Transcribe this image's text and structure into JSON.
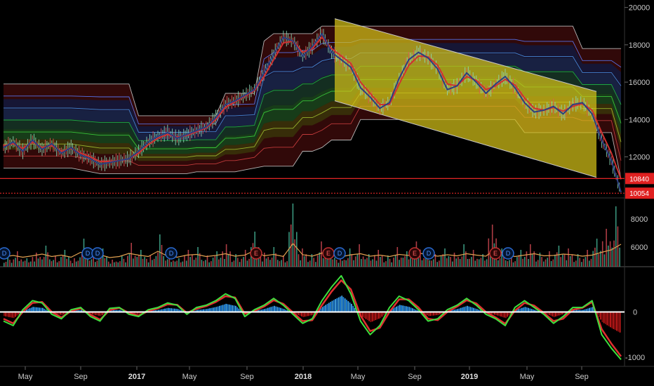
{
  "chart_data": [
    {
      "type": "line",
      "panel": "price",
      "title": "",
      "ylim": [
        9800,
        20400
      ],
      "y_ticks": [
        "20000",
        "18000",
        "16000",
        "14000",
        "12000"
      ],
      "y_tick_values": [
        20000,
        18000,
        16000,
        14000,
        12000
      ],
      "price_labels": [
        {
          "text": "10840",
          "value": 10840,
          "color": "#e02020"
        },
        {
          "text": "10054",
          "value": 10054,
          "color": "#e02020"
        }
      ],
      "x_ticks": [
        "May",
        "Sep",
        "2017",
        "May",
        "Sep",
        "2018",
        "May",
        "Sep",
        "2019",
        "May",
        "Sep"
      ],
      "series": [
        {
          "values": [
            12500,
            12800,
            12300,
            12900,
            12400,
            12700,
            12200,
            12500,
            12100,
            11900,
            11600,
            11700,
            11800,
            11900,
            12300,
            12800,
            13100,
            13300,
            13000,
            13200,
            13400,
            13600,
            14100,
            14800,
            15000,
            15300,
            15600,
            16500,
            17500,
            18400,
            18200,
            17400,
            17900,
            18600,
            17600,
            17200,
            16800,
            15700,
            15200,
            14600,
            14900,
            16200,
            17200,
            17600,
            17300,
            16700,
            15600,
            15800,
            16500,
            16000,
            15400,
            15900,
            16300,
            15700,
            14900,
            14400,
            14500,
            14700,
            14300,
            14800,
            14900,
            14300,
            12900,
            11800,
            10100
          ]
        },
        {
          "values": [
            12600,
            12700,
            12450,
            12800,
            12500,
            12600,
            12300,
            12450,
            12200,
            12000,
            11750,
            11750,
            11800,
            11900,
            12200,
            12650,
            13000,
            13200,
            13050,
            13150,
            13350,
            13550,
            14000,
            14650,
            14950,
            15250,
            15550,
            16300,
            17200,
            18100,
            18200,
            17600,
            17800,
            18400,
            17800,
            17400,
            17000,
            16000,
            15400,
            14800,
            14800,
            15900,
            16900,
            17400,
            17350,
            16900,
            15900,
            15800,
            16300,
            16100,
            15600,
            15800,
            16150,
            15850,
            15150,
            14600,
            14500,
            14650,
            14450,
            14700,
            14850,
            14500,
            13300,
            12200,
            10800
          ]
        }
      ],
      "levels": [
        {
          "values": [
            15900,
            15900,
            15900,
            15900,
            15900,
            15900,
            15900,
            15900,
            15900,
            15900,
            15900,
            15900,
            15900,
            15900,
            14200,
            14200,
            14200,
            14200,
            14200,
            14200,
            14200,
            14200,
            14200,
            15400,
            15400,
            15400,
            15400,
            18200,
            18600,
            18600,
            18600,
            18600,
            18600,
            19000,
            19000,
            19000,
            19000,
            19000,
            19000,
            19000,
            19000,
            19000,
            19000,
            19000,
            19000,
            19000,
            19000,
            19000,
            19000,
            19000,
            19000,
            19000,
            19000,
            19000,
            19000,
            19000,
            19000,
            19000,
            19000,
            19000,
            17800,
            17800,
            17800,
            17800,
            17800
          ]
        },
        {
          "values": [
            11400,
            11400,
            11400,
            11400,
            11400,
            11400,
            11400,
            11400,
            11300,
            11200,
            11100,
            11100,
            11100,
            11100,
            11100,
            11100,
            11100,
            11100,
            11100,
            11100,
            11200,
            11200,
            11200,
            11200,
            11200,
            11300,
            11400,
            11500,
            11500,
            11500,
            11500,
            12300,
            12300,
            12500,
            12900,
            12900,
            12900,
            14000,
            14000,
            14000,
            14000,
            14000,
            14000,
            14000,
            14000,
            14000,
            14000,
            14000,
            14000,
            14000,
            14000,
            14000,
            14000,
            14000,
            13300,
            13300,
            13300,
            13300,
            13300,
            13300,
            13300,
            13300,
            13300,
            13300,
            10800
          ]
        }
      ],
      "channel": {
        "start": [
          19400,
          15000
        ],
        "end": [
          15500,
          10900
        ]
      }
    },
    {
      "type": "bar",
      "panel": "volume",
      "ylim": [
        4600,
        9500
      ],
      "y_ticks": [
        "8000",
        "6000"
      ],
      "y_tick_values": [
        8000,
        6000
      ],
      "values": [
        5300,
        5700,
        5200,
        5600,
        6100,
        5400,
        5800,
        5200,
        6600,
        5500,
        5900,
        5100,
        5400,
        6300,
        5800,
        5400,
        6900,
        5500,
        5200,
        5800,
        6000,
        5400,
        5700,
        6200,
        5500,
        5800,
        7100,
        5600,
        6000,
        5400,
        9100,
        5900,
        5500,
        6400,
        5700,
        5300,
        5900,
        6200,
        5500,
        5800,
        5400,
        6000,
        5700,
        6400,
        5900,
        5500,
        5900,
        5600,
        6200,
        5800,
        5500,
        7600,
        5900,
        5400,
        5800,
        6200,
        5600,
        5700,
        6100,
        5900,
        5500,
        5800,
        6600,
        7300,
        8900
      ],
      "events": [
        "D",
        "D",
        "D",
        "D",
        "E",
        "E",
        "D",
        "E",
        "D",
        "E",
        "D"
      ]
    },
    {
      "type": "line",
      "panel": "oscillator",
      "ylim": [
        -1200,
        1000
      ],
      "y_ticks": [
        "0",
        "-1000"
      ],
      "y_tick_values": [
        0,
        -1000
      ],
      "series": [
        {
          "values": [
            -200,
            -300,
            50,
            250,
            200,
            -50,
            -150,
            50,
            100,
            -100,
            -200,
            80,
            100,
            -50,
            -100,
            50,
            100,
            200,
            150,
            -50,
            100,
            150,
            250,
            400,
            300,
            -100,
            50,
            150,
            300,
            150,
            -50,
            -250,
            -150,
            250,
            550,
            800,
            400,
            -200,
            -500,
            -300,
            100,
            350,
            250,
            50,
            -200,
            -150,
            50,
            150,
            300,
            150,
            -50,
            -150,
            -300,
            100,
            250,
            100,
            -50,
            -250,
            -100,
            100,
            100,
            250,
            -500,
            -800,
            -1050
          ]
        },
        {
          "values": [
            -150,
            -250,
            0,
            200,
            220,
            0,
            -120,
            20,
            80,
            -60,
            -170,
            40,
            90,
            -20,
            -80,
            20,
            80,
            170,
            160,
            -20,
            70,
            130,
            220,
            350,
            320,
            -40,
            20,
            120,
            260,
            180,
            -10,
            -200,
            -180,
            150,
            450,
            700,
            500,
            -80,
            -420,
            -350,
            0,
            280,
            280,
            100,
            -150,
            -180,
            0,
            120,
            260,
            190,
            0,
            -120,
            -260,
            30,
            200,
            140,
            -20,
            -200,
            -150,
            50,
            90,
            220,
            -380,
            -700,
            -980
          ]
        }
      ]
    }
  ],
  "colors": {
    "price_main": "#2c3e80",
    "price_fast": "#d03030",
    "channel_fill": "#d4c017",
    "up_volume": "#3fa48a",
    "down_volume": "#c0424b",
    "zero_line": "#ffffff",
    "level_line": "#ff2a2a"
  }
}
